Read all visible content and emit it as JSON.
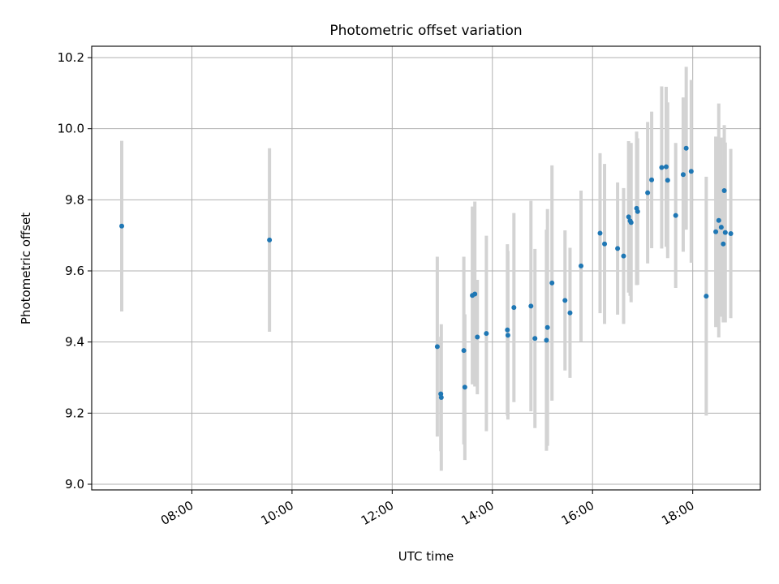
{
  "chart_data": {
    "type": "scatter",
    "title": "Photometric offset variation",
    "xlabel": "UTC time",
    "ylabel": "Photometric offset",
    "x_tick_labels": [
      "08:00",
      "10:00",
      "12:00",
      "14:00",
      "16:00",
      "18:00"
    ],
    "x_tick_hours": [
      8,
      10,
      12,
      14,
      16,
      18
    ],
    "y_ticks": [
      9.0,
      9.2,
      9.4,
      9.6,
      9.8,
      10.0,
      10.2
    ],
    "y_tick_labels": [
      "9.0",
      "9.2",
      "9.4",
      "9.6",
      "9.8",
      "10.0",
      "10.2"
    ],
    "xlim_hours": [
      6.0,
      19.35
    ],
    "ylim": [
      8.984,
      10.232
    ],
    "grid": true,
    "point_color": "#1f77b4",
    "errorbar_color": "#d3d3d3",
    "series": [
      {
        "x_hours": [
          6.6,
          9.55,
          12.9,
          12.97,
          12.98,
          13.43,
          13.45,
          13.6,
          13.65,
          13.7,
          13.88,
          14.3,
          14.31,
          14.43,
          14.77,
          14.85,
          15.08,
          15.1,
          15.19,
          15.45,
          15.55,
          15.77,
          16.15,
          16.24,
          16.5,
          16.62,
          16.72,
          16.75,
          16.77,
          16.88,
          16.9,
          17.1,
          17.18,
          17.38,
          17.47,
          17.5,
          17.66,
          17.81,
          17.87,
          17.97,
          18.27,
          18.46,
          18.52,
          18.57,
          18.61,
          18.63,
          18.65,
          18.76
        ],
        "y": [
          9.726,
          9.687,
          9.387,
          9.254,
          9.244,
          9.376,
          9.273,
          9.531,
          9.535,
          9.414,
          9.424,
          9.434,
          9.419,
          9.497,
          9.501,
          9.41,
          9.405,
          9.441,
          9.566,
          9.517,
          9.482,
          9.614,
          9.706,
          9.676,
          9.663,
          9.642,
          9.752,
          9.741,
          9.736,
          9.776,
          9.767,
          9.82,
          9.856,
          9.891,
          9.893,
          9.855,
          9.756,
          9.871,
          9.945,
          9.88,
          9.529,
          9.71,
          9.742,
          9.723,
          9.676,
          9.826,
          9.708,
          9.705
        ],
        "y_err": [
          0.24,
          0.258,
          0.253,
          0.161,
          0.206,
          0.264,
          0.205,
          0.25,
          0.26,
          0.161,
          0.275,
          0.241,
          0.237,
          0.266,
          0.296,
          0.252,
          0.311,
          0.333,
          0.331,
          0.197,
          0.183,
          0.212,
          0.225,
          0.225,
          0.186,
          0.191,
          0.213,
          0.211,
          0.224,
          0.216,
          0.206,
          0.199,
          0.192,
          0.228,
          0.225,
          0.219,
          0.204,
          0.217,
          0.229,
          0.257,
          0.336,
          0.268,
          0.329,
          0.252,
          0.221,
          0.184,
          0.253,
          0.238
        ]
      }
    ]
  }
}
